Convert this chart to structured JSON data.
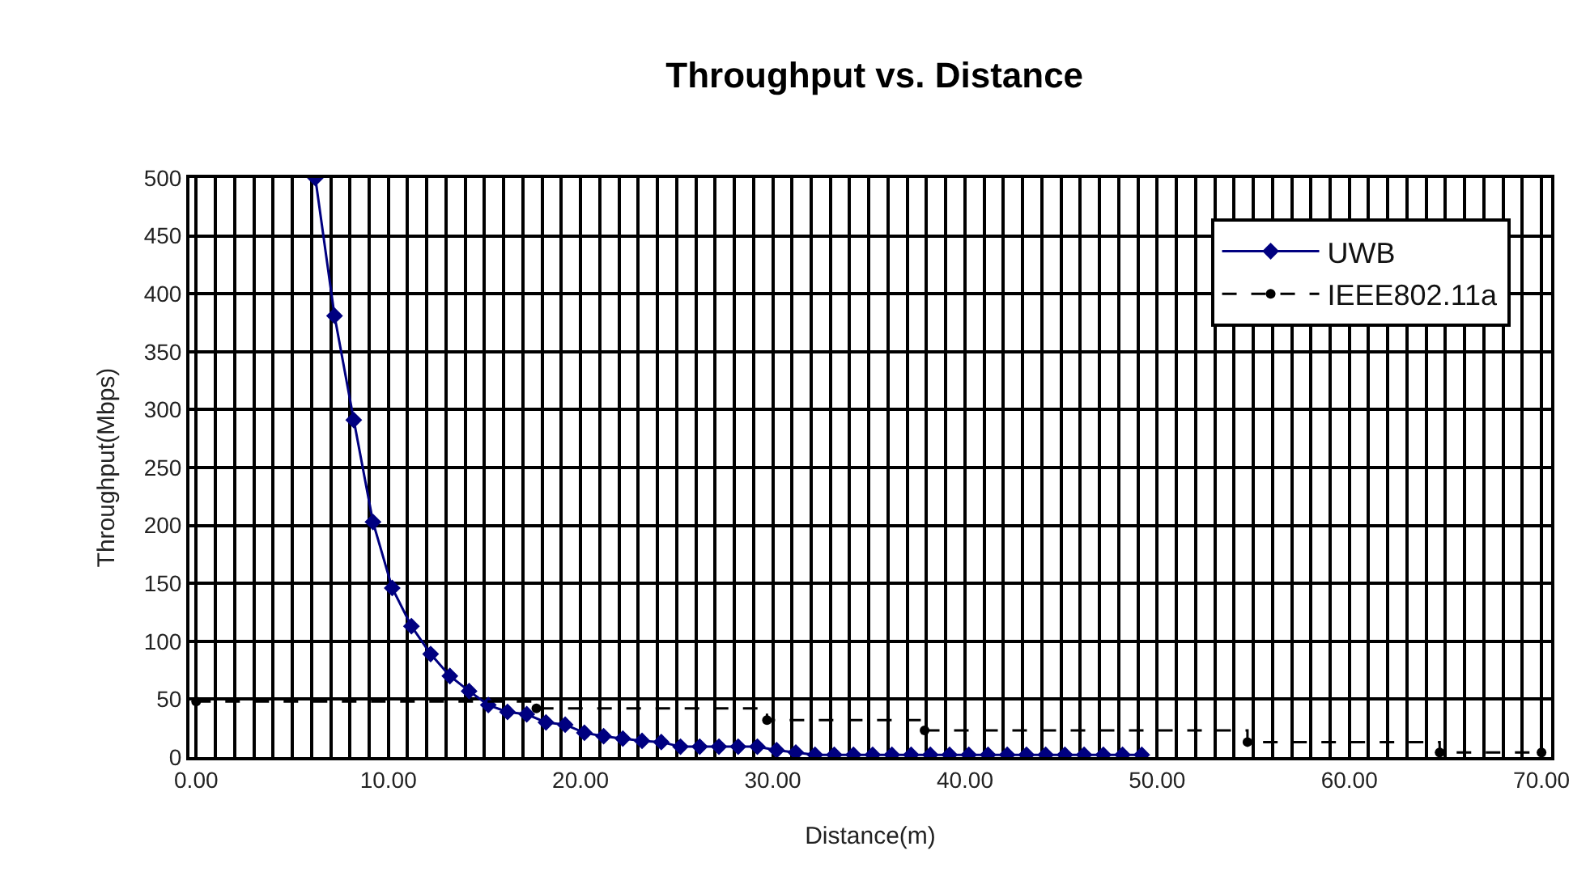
{
  "chart_data": {
    "type": "line",
    "title": "Throughput vs. Distance",
    "xlabel": "Distance(m)",
    "ylabel": "Throughput(Mbps)",
    "xlim": [
      -0.35,
      70.5
    ],
    "ylim": [
      0,
      500
    ],
    "xticks": [
      {
        "value": 0,
        "label": "0.00"
      },
      {
        "value": 1,
        "label": null
      },
      {
        "value": 2,
        "label": null
      },
      {
        "value": 3,
        "label": null
      },
      {
        "value": 4,
        "label": null
      },
      {
        "value": 5,
        "label": null
      },
      {
        "value": 6,
        "label": null
      },
      {
        "value": 7,
        "label": null
      },
      {
        "value": 8,
        "label": null
      },
      {
        "value": 9,
        "label": null
      },
      {
        "value": 10,
        "label": "10.00"
      },
      {
        "value": 11,
        "label": null
      },
      {
        "value": 12,
        "label": null
      },
      {
        "value": 13,
        "label": null
      },
      {
        "value": 14,
        "label": null
      },
      {
        "value": 15,
        "label": null
      },
      {
        "value": 16,
        "label": null
      },
      {
        "value": 17,
        "label": null
      },
      {
        "value": 18,
        "label": null
      },
      {
        "value": 19,
        "label": null
      },
      {
        "value": 20,
        "label": "20.00"
      },
      {
        "value": 21,
        "label": null
      },
      {
        "value": 22,
        "label": null
      },
      {
        "value": 23,
        "label": null
      },
      {
        "value": 24,
        "label": null
      },
      {
        "value": 25,
        "label": null
      },
      {
        "value": 26,
        "label": null
      },
      {
        "value": 27,
        "label": null
      },
      {
        "value": 28,
        "label": null
      },
      {
        "value": 29,
        "label": null
      },
      {
        "value": 30,
        "label": "30.00"
      },
      {
        "value": 31,
        "label": null
      },
      {
        "value": 32,
        "label": null
      },
      {
        "value": 33,
        "label": null
      },
      {
        "value": 34,
        "label": null
      },
      {
        "value": 35,
        "label": null
      },
      {
        "value": 36,
        "label": null
      },
      {
        "value": 37,
        "label": null
      },
      {
        "value": 38,
        "label": null
      },
      {
        "value": 39,
        "label": null
      },
      {
        "value": 40,
        "label": "40.00"
      },
      {
        "value": 41,
        "label": null
      },
      {
        "value": 42,
        "label": null
      },
      {
        "value": 43,
        "label": null
      },
      {
        "value": 44,
        "label": null
      },
      {
        "value": 45,
        "label": null
      },
      {
        "value": 46,
        "label": null
      },
      {
        "value": 47,
        "label": null
      },
      {
        "value": 48,
        "label": null
      },
      {
        "value": 49,
        "label": null
      },
      {
        "value": 50,
        "label": "50.00"
      },
      {
        "value": 51,
        "label": null
      },
      {
        "value": 52,
        "label": null
      },
      {
        "value": 53,
        "label": null
      },
      {
        "value": 54,
        "label": null
      },
      {
        "value": 55,
        "label": null
      },
      {
        "value": 56,
        "label": null
      },
      {
        "value": 57,
        "label": null
      },
      {
        "value": 58,
        "label": null
      },
      {
        "value": 59,
        "label": null
      },
      {
        "value": 60,
        "label": "60.00"
      },
      {
        "value": 61,
        "label": null
      },
      {
        "value": 62,
        "label": null
      },
      {
        "value": 63,
        "label": null
      },
      {
        "value": 64,
        "label": null
      },
      {
        "value": 65,
        "label": null
      },
      {
        "value": 66,
        "label": null
      },
      {
        "value": 67,
        "label": null
      },
      {
        "value": 68,
        "label": null
      },
      {
        "value": 69,
        "label": null
      },
      {
        "value": 70,
        "label": "70.00"
      }
    ],
    "yticks": [
      0,
      50,
      100,
      150,
      200,
      250,
      300,
      350,
      400,
      450,
      500
    ],
    "grid": true,
    "legend": "top right",
    "series": [
      {
        "name": "UWB",
        "color": "#000080",
        "marker": "diamond",
        "line_style": "solid",
        "x": [
          6.2,
          7.2,
          8.2,
          9.2,
          10.2,
          11.2,
          12.2,
          13.2,
          14.2,
          15.2,
          16.2,
          17.2,
          18.2,
          19.2,
          20.2,
          21.2,
          22.2,
          23.2,
          24.2,
          25.2,
          26.2,
          27.2,
          28.2,
          29.2,
          30.2,
          31.2,
          32.2,
          33.2,
          34.2,
          35.2,
          36.2,
          37.2,
          38.2,
          39.2,
          40.2,
          41.2,
          42.2,
          43.2,
          44.2,
          45.2,
          46.2,
          47.2,
          48.2,
          49.2
        ],
        "values": [
          500,
          381,
          291,
          203,
          146,
          113,
          89,
          70,
          57,
          45,
          39,
          37,
          30,
          28,
          21,
          18,
          16,
          14,
          13,
          9,
          9,
          9,
          9,
          9,
          6,
          4,
          2,
          2,
          2,
          2,
          2,
          2,
          2,
          2,
          2,
          2,
          2,
          2,
          2,
          2,
          2,
          2,
          2,
          2
        ]
      },
      {
        "name": "IEEE802.11a",
        "type": "step",
        "color": "#000000",
        "marker": "circle",
        "line_style": "dashed",
        "x": [
          0,
          17.7,
          29.7,
          37.9,
          54.7,
          64.7,
          70
        ],
        "values": [
          48,
          42,
          32,
          23,
          13,
          4,
          4
        ]
      }
    ]
  }
}
